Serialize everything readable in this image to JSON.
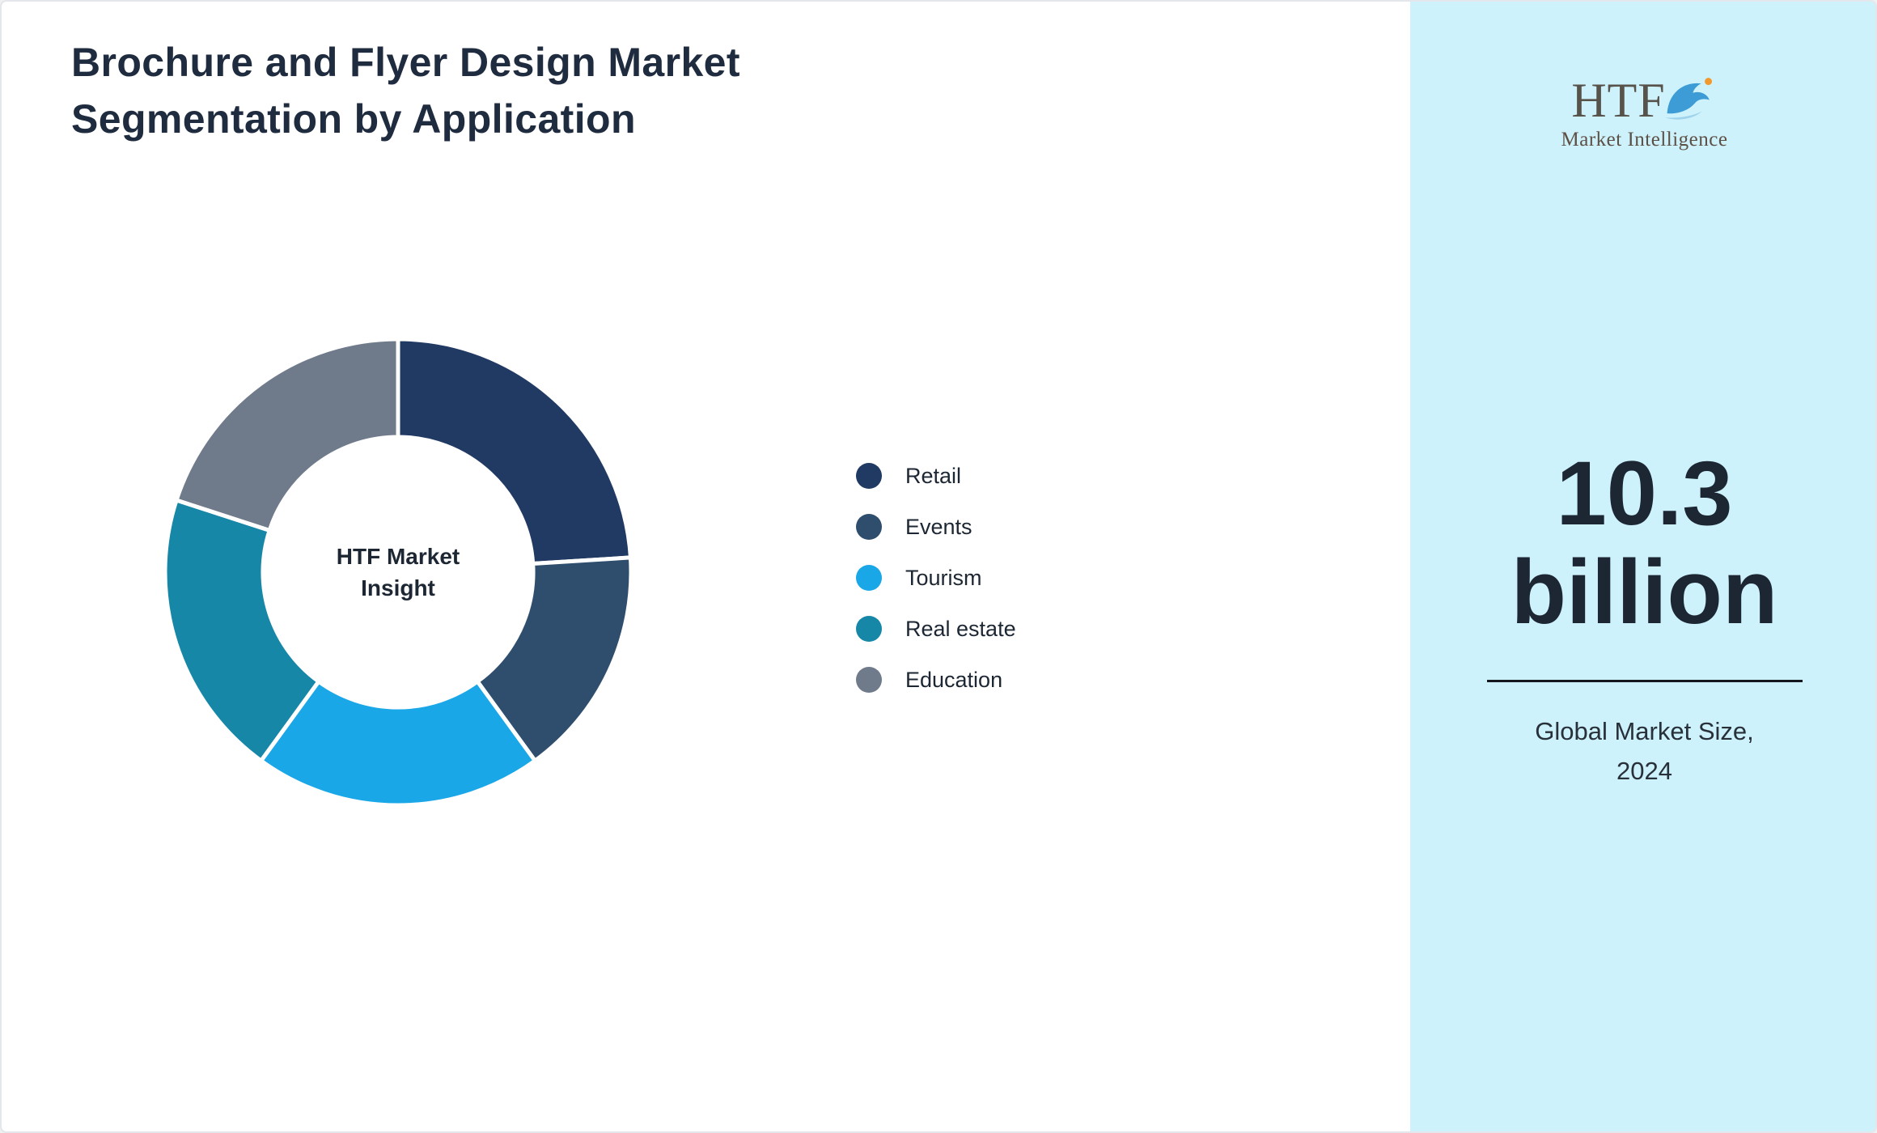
{
  "header": {
    "title_line1": "Brochure and Flyer Design Market",
    "title_line2": "Segmentation by Application"
  },
  "chart_data": {
    "type": "pie",
    "variant": "donut",
    "title": "Brochure and Flyer Design Market Segmentation by Application",
    "center_label": "HTF Market Insight",
    "categories": [
      "Retail",
      "Events",
      "Tourism",
      "Real estate",
      "Education"
    ],
    "values": [
      24,
      16,
      20,
      20,
      20
    ],
    "colors": [
      "#203a64",
      "#2f4e6e",
      "#1aa7e8",
      "#1787a8",
      "#6f7a8a"
    ],
    "legend_position": "right",
    "start_angle_deg": 0,
    "direction": "clockwise",
    "donut_hole_ratio": 0.58,
    "separator_color": "#ffffff"
  },
  "sidebar": {
    "background": "#cdf2fb",
    "logo": {
      "acronym": "HTF",
      "tagline": "Market Intelligence",
      "dolphin_color": "#3d9bd5",
      "ball_color": "#f2992e"
    },
    "market_size": {
      "value": "10.3",
      "unit": "billion"
    },
    "caption_line1": "Global Market Size,",
    "caption_line2": "2024"
  }
}
